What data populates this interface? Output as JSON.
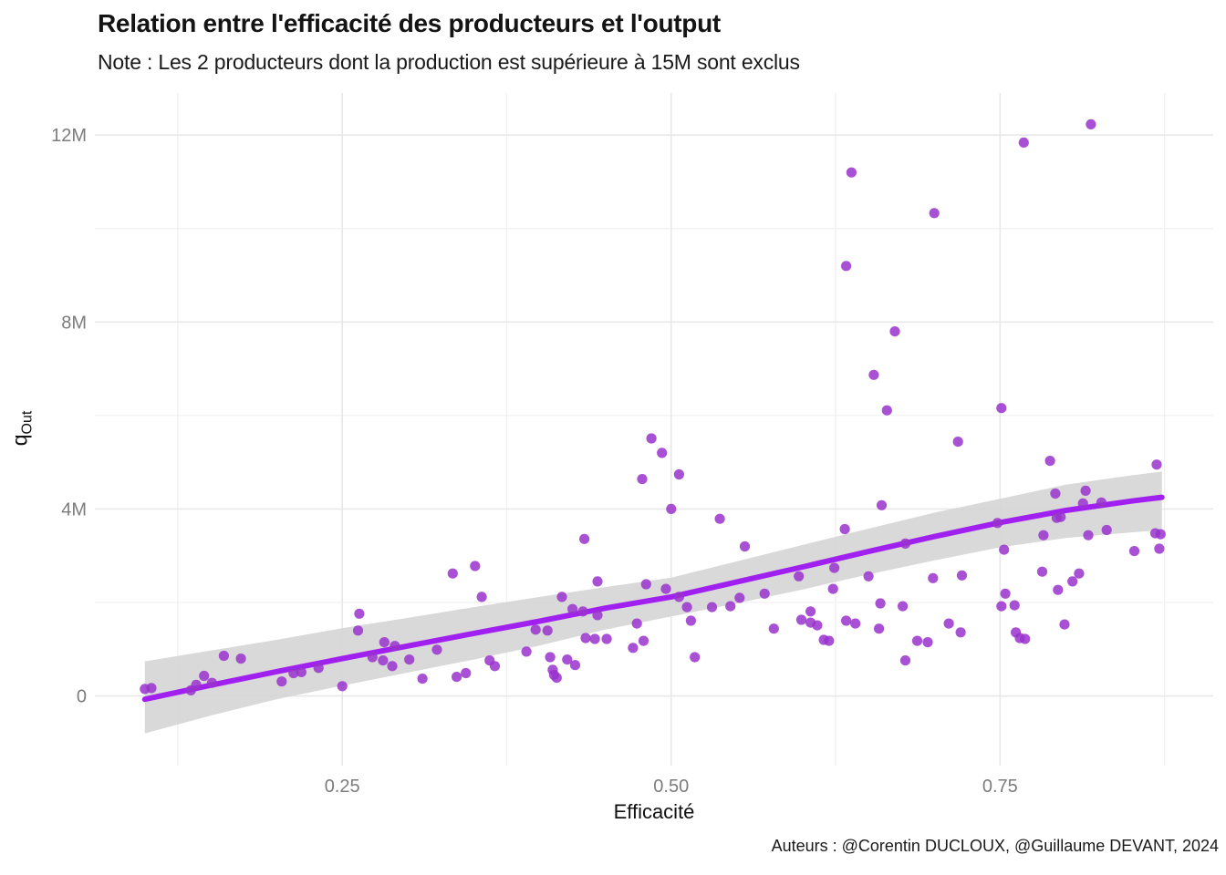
{
  "header": {
    "title": "Relation entre l'efficacité des producteurs et l'output",
    "subtitle": "Note : Les 2 producteurs dont la production est supérieure à 15M sont exclus"
  },
  "axes": {
    "x_title": "Efficacité",
    "y_title_main": "q",
    "y_title_sub": "Out"
  },
  "caption": "Auteurs : @Corentin DUCLOUX, @Guillaume DEVANT, 2024",
  "colors": {
    "point": "#9932CC",
    "trend_line": "#A020F0",
    "confidence_band": "#D5D5D5",
    "grid_major": "#E8E8E8",
    "grid_minor": "#F0F0F0",
    "tick_label": "#7c7c7c",
    "background": "#FFFFFF"
  },
  "chart_data": {
    "type": "scatter",
    "title": "Relation entre l'efficacité des producteurs et l'output",
    "subtitle": "Note : Les 2 producteurs dont la production est supérieure à 15M sont exclus",
    "xlabel": "Efficacité",
    "ylabel": "qOut",
    "unit_y": "millions",
    "grid": true,
    "legend": "none",
    "xlim": [
      0.062,
      0.912
    ],
    "ylim_M": [
      -1.49,
      12.9
    ],
    "x_ticks": [
      {
        "v": 0.25,
        "label": "0.25"
      },
      {
        "v": 0.5,
        "label": "0.50"
      },
      {
        "v": 0.75,
        "label": "0.75"
      }
    ],
    "y_ticks": [
      {
        "v": 0,
        "label": "0"
      },
      {
        "v": 4,
        "label": "4M"
      },
      {
        "v": 8,
        "label": "8M"
      },
      {
        "v": 12,
        "label": "12M"
      }
    ],
    "x_minor": [
      0.125,
      0.375,
      0.625,
      0.875
    ],
    "y_minor": [
      2,
      6,
      10
    ],
    "points": [
      [
        0.1,
        0.15
      ],
      [
        0.105,
        0.17
      ],
      [
        0.135,
        0.12
      ],
      [
        0.139,
        0.24
      ],
      [
        0.145,
        0.43
      ],
      [
        0.151,
        0.28
      ],
      [
        0.16,
        0.86
      ],
      [
        0.173,
        0.8
      ],
      [
        0.204,
        0.31
      ],
      [
        0.213,
        0.49
      ],
      [
        0.219,
        0.51
      ],
      [
        0.232,
        0.6
      ],
      [
        0.25,
        0.21
      ],
      [
        0.262,
        1.4
      ],
      [
        0.263,
        1.76
      ],
      [
        0.273,
        0.83
      ],
      [
        0.281,
        0.76
      ],
      [
        0.282,
        1.15
      ],
      [
        0.288,
        0.64
      ],
      [
        0.29,
        1.07
      ],
      [
        0.301,
        0.78
      ],
      [
        0.311,
        0.37
      ],
      [
        0.322,
        0.99
      ],
      [
        0.334,
        2.62
      ],
      [
        0.337,
        0.41
      ],
      [
        0.344,
        0.49
      ],
      [
        0.351,
        2.78
      ],
      [
        0.356,
        2.12
      ],
      [
        0.362,
        0.76
      ],
      [
        0.366,
        0.64
      ],
      [
        0.39,
        0.95
      ],
      [
        0.397,
        1.42
      ],
      [
        0.406,
        1.4
      ],
      [
        0.408,
        0.83
      ],
      [
        0.41,
        0.56
      ],
      [
        0.411,
        0.45
      ],
      [
        0.413,
        0.39
      ],
      [
        0.417,
        2.12
      ],
      [
        0.421,
        0.78
      ],
      [
        0.425,
        1.86
      ],
      [
        0.427,
        0.66
      ],
      [
        0.433,
        1.81
      ],
      [
        0.434,
        3.36
      ],
      [
        0.435,
        1.24
      ],
      [
        0.442,
        1.22
      ],
      [
        0.444,
        2.45
      ],
      [
        0.444,
        1.73
      ],
      [
        0.451,
        1.22
      ],
      [
        0.471,
        1.03
      ],
      [
        0.474,
        1.55
      ],
      [
        0.478,
        4.64
      ],
      [
        0.479,
        1.18
      ],
      [
        0.481,
        2.39
      ],
      [
        0.485,
        5.51
      ],
      [
        0.493,
        5.2
      ],
      [
        0.496,
        2.29
      ],
      [
        0.5,
        4.0
      ],
      [
        0.506,
        4.74
      ],
      [
        0.506,
        2.12
      ],
      [
        0.512,
        1.9
      ],
      [
        0.515,
        1.61
      ],
      [
        0.518,
        0.83
      ],
      [
        0.531,
        1.9
      ],
      [
        0.537,
        3.79
      ],
      [
        0.545,
        1.92
      ],
      [
        0.552,
        2.1
      ],
      [
        0.556,
        3.2
      ],
      [
        0.571,
        2.19
      ],
      [
        0.578,
        1.44
      ],
      [
        0.597,
        2.56
      ],
      [
        0.599,
        1.63
      ],
      [
        0.606,
        1.81
      ],
      [
        0.606,
        1.57
      ],
      [
        0.611,
        1.51
      ],
      [
        0.616,
        1.2
      ],
      [
        0.62,
        1.18
      ],
      [
        0.623,
        2.29
      ],
      [
        0.624,
        2.74
      ],
      [
        0.632,
        3.57
      ],
      [
        0.633,
        9.2
      ],
      [
        0.633,
        1.61
      ],
      [
        0.637,
        11.2
      ],
      [
        0.64,
        1.55
      ],
      [
        0.65,
        2.56
      ],
      [
        0.654,
        6.87
      ],
      [
        0.658,
        1.44
      ],
      [
        0.659,
        1.98
      ],
      [
        0.66,
        4.08
      ],
      [
        0.664,
        6.11
      ],
      [
        0.67,
        7.8
      ],
      [
        0.676,
        1.92
      ],
      [
        0.678,
        3.26
      ],
      [
        0.678,
        0.76
      ],
      [
        0.687,
        1.18
      ],
      [
        0.695,
        1.15
      ],
      [
        0.699,
        2.52
      ],
      [
        0.7,
        10.33
      ],
      [
        0.711,
        1.55
      ],
      [
        0.718,
        5.44
      ],
      [
        0.72,
        1.36
      ],
      [
        0.721,
        2.58
      ],
      [
        0.748,
        3.7
      ],
      [
        0.751,
        6.16
      ],
      [
        0.751,
        1.92
      ],
      [
        0.753,
        3.13
      ],
      [
        0.754,
        2.19
      ],
      [
        0.761,
        1.94
      ],
      [
        0.762,
        1.36
      ],
      [
        0.765,
        1.24
      ],
      [
        0.768,
        11.84
      ],
      [
        0.769,
        1.22
      ],
      [
        0.782,
        2.66
      ],
      [
        0.783,
        3.44
      ],
      [
        0.788,
        5.03
      ],
      [
        0.792,
        4.33
      ],
      [
        0.793,
        3.81
      ],
      [
        0.794,
        2.27
      ],
      [
        0.796,
        3.83
      ],
      [
        0.799,
        1.53
      ],
      [
        0.805,
        2.45
      ],
      [
        0.81,
        2.62
      ],
      [
        0.813,
        4.12
      ],
      [
        0.815,
        4.39
      ],
      [
        0.817,
        3.44
      ],
      [
        0.819,
        12.23
      ],
      [
        0.827,
        4.14
      ],
      [
        0.831,
        3.55
      ],
      [
        0.852,
        3.1
      ],
      [
        0.868,
        3.48
      ],
      [
        0.869,
        4.95
      ],
      [
        0.871,
        3.15
      ],
      [
        0.872,
        3.46
      ]
    ],
    "trend_line": [
      [
        0.1,
        -0.07
      ],
      [
        0.15,
        0.23
      ],
      [
        0.2,
        0.52
      ],
      [
        0.25,
        0.8
      ],
      [
        0.3,
        1.07
      ],
      [
        0.35,
        1.34
      ],
      [
        0.4,
        1.6
      ],
      [
        0.45,
        1.88
      ],
      [
        0.5,
        2.12
      ],
      [
        0.55,
        2.44
      ],
      [
        0.6,
        2.76
      ],
      [
        0.65,
        3.09
      ],
      [
        0.7,
        3.41
      ],
      [
        0.75,
        3.71
      ],
      [
        0.8,
        3.97
      ],
      [
        0.85,
        4.17
      ],
      [
        0.873,
        4.25
      ]
    ],
    "confidence_band": [
      {
        "x": 0.1,
        "lo": -0.8,
        "hi": 0.74
      },
      {
        "x": 0.15,
        "lo": -0.42,
        "hi": 0.97
      },
      {
        "x": 0.2,
        "lo": -0.07,
        "hi": 1.2
      },
      {
        "x": 0.25,
        "lo": 0.22,
        "hi": 1.45
      },
      {
        "x": 0.3,
        "lo": 0.5,
        "hi": 1.67
      },
      {
        "x": 0.35,
        "lo": 0.78,
        "hi": 1.9
      },
      {
        "x": 0.4,
        "lo": 1.08,
        "hi": 2.12
      },
      {
        "x": 0.45,
        "lo": 1.42,
        "hi": 2.33
      },
      {
        "x": 0.5,
        "lo": 1.7,
        "hi": 2.53
      },
      {
        "x": 0.55,
        "lo": 1.98,
        "hi": 2.88
      },
      {
        "x": 0.6,
        "lo": 2.28,
        "hi": 3.23
      },
      {
        "x": 0.65,
        "lo": 2.6,
        "hi": 3.58
      },
      {
        "x": 0.7,
        "lo": 2.9,
        "hi": 3.92
      },
      {
        "x": 0.75,
        "lo": 3.18,
        "hi": 4.22
      },
      {
        "x": 0.8,
        "lo": 3.38,
        "hi": 4.52
      },
      {
        "x": 0.85,
        "lo": 3.5,
        "hi": 4.72
      },
      {
        "x": 0.873,
        "lo": 3.55,
        "hi": 4.8
      }
    ]
  }
}
